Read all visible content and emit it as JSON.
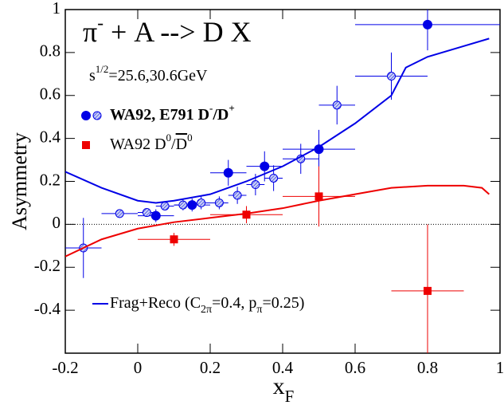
{
  "chart_data": {
    "type": "scatter",
    "xlim": [
      -0.2,
      1
    ],
    "ylim": [
      -0.6,
      1
    ],
    "xticks": [
      -0.2,
      0,
      0.2,
      0.4,
      0.6,
      0.8,
      1
    ],
    "yticks": [
      -0.4,
      -0.2,
      0,
      0.2,
      0.4,
      0.6,
      0.8,
      1
    ],
    "zero_line": true,
    "y_label": [
      {
        "text": "Asymmetry"
      }
    ],
    "x_label": [
      {
        "text": "x"
      },
      {
        "text": "F",
        "shift": "sub"
      }
    ],
    "annotations": [
      [
        {
          "text": "π"
        },
        {
          "text": "-",
          "shift": "sup"
        },
        {
          "text": " + A --> D X"
        }
      ],
      [
        {
          "text": "s"
        },
        {
          "text": "1/2",
          "shift": "sup"
        },
        {
          "text": "=25.6,30.6GeV"
        }
      ]
    ],
    "series": [
      {
        "kind": "points",
        "marker": "circle",
        "fill": "solid",
        "color": "#0000e6",
        "x": [
          0.05,
          0.15,
          0.25,
          0.35,
          0.5,
          0.8
        ],
        "y": [
          0.04,
          0.09,
          0.24,
          0.27,
          0.35,
          0.93
        ],
        "xerr": [
          0.05,
          0.05,
          0.05,
          0.05,
          0.1,
          0.2
        ],
        "yerr": [
          0.03,
          0.03,
          0.06,
          0.07,
          0.09,
          0.12
        ]
      },
      {
        "kind": "points",
        "marker": "circle",
        "fill": "hatched",
        "color": "#0000e6",
        "x": [
          -0.15,
          -0.05,
          0.025,
          0.075,
          0.125,
          0.175,
          0.225,
          0.275,
          0.325,
          0.375,
          0.45,
          0.55,
          0.7
        ],
        "y": [
          -0.11,
          0.05,
          0.055,
          0.085,
          0.09,
          0.1,
          0.1,
          0.135,
          0.185,
          0.215,
          0.305,
          0.555,
          0.69
        ],
        "xerr": [
          0.05,
          0.05,
          0.025,
          0.025,
          0.025,
          0.025,
          0.025,
          0.025,
          0.025,
          0.025,
          0.05,
          0.05,
          0.1
        ],
        "yerr": [
          0.14,
          0.02,
          0.02,
          0.02,
          0.025,
          0.03,
          0.03,
          0.04,
          0.05,
          0.06,
          0.07,
          0.09,
          0.11
        ]
      },
      {
        "kind": "points",
        "marker": "square",
        "fill": "solid",
        "color": "#ee0000",
        "x": [
          0.1,
          0.3,
          0.5,
          0.8
        ],
        "y": [
          -0.07,
          0.045,
          0.13,
          -0.31
        ],
        "xerr": [
          0.1,
          0.1,
          0.1,
          0.1
        ],
        "yerr": [
          0.03,
          0.04,
          0.14,
          0.31
        ]
      },
      {
        "kind": "line",
        "color": "#0000e6",
        "x": [
          -0.2,
          -0.1,
          0,
          0.05,
          0.1,
          0.2,
          0.3,
          0.4,
          0.5,
          0.6,
          0.7,
          0.74,
          0.8,
          0.9,
          0.97
        ],
        "y": [
          0.245,
          0.17,
          0.11,
          0.1,
          0.11,
          0.14,
          0.2,
          0.27,
          0.36,
          0.47,
          0.6,
          0.73,
          0.78,
          0.83,
          0.865
        ]
      },
      {
        "kind": "line",
        "color": "#ee0000",
        "x": [
          -0.2,
          -0.1,
          0,
          0.1,
          0.2,
          0.3,
          0.4,
          0.5,
          0.6,
          0.7,
          0.75,
          0.8,
          0.9,
          0.95,
          0.97
        ],
        "y": [
          -0.15,
          -0.07,
          -0.02,
          0.01,
          0.03,
          0.05,
          0.075,
          0.11,
          0.14,
          0.17,
          0.175,
          0.18,
          0.18,
          0.17,
          0.14
        ]
      }
    ],
    "legend": [
      {
        "series": [
          0,
          1
        ],
        "bold": true,
        "label": [
          {
            "text": "WA92, E791 D"
          },
          {
            "text": "-",
            "shift": "sup"
          },
          {
            "text": "/D"
          },
          {
            "text": "+",
            "shift": "sup"
          }
        ]
      },
      {
        "series": [
          2
        ],
        "label": [
          {
            "text": "WA92 D"
          },
          {
            "text": "0",
            "shift": "sup"
          },
          {
            "text": "/"
          },
          {
            "text": "D",
            "shift": "over"
          },
          {
            "text": "0",
            "shift": "sup"
          }
        ]
      },
      {
        "series": [
          3
        ],
        "label": [
          {
            "text": "Frag+Reco (C"
          },
          {
            "text": "2π",
            "shift": "sub"
          },
          {
            "text": "=0.4, p"
          },
          {
            "text": "π",
            "shift": "sub"
          },
          {
            "text": "=0.25)"
          }
        ]
      }
    ]
  }
}
